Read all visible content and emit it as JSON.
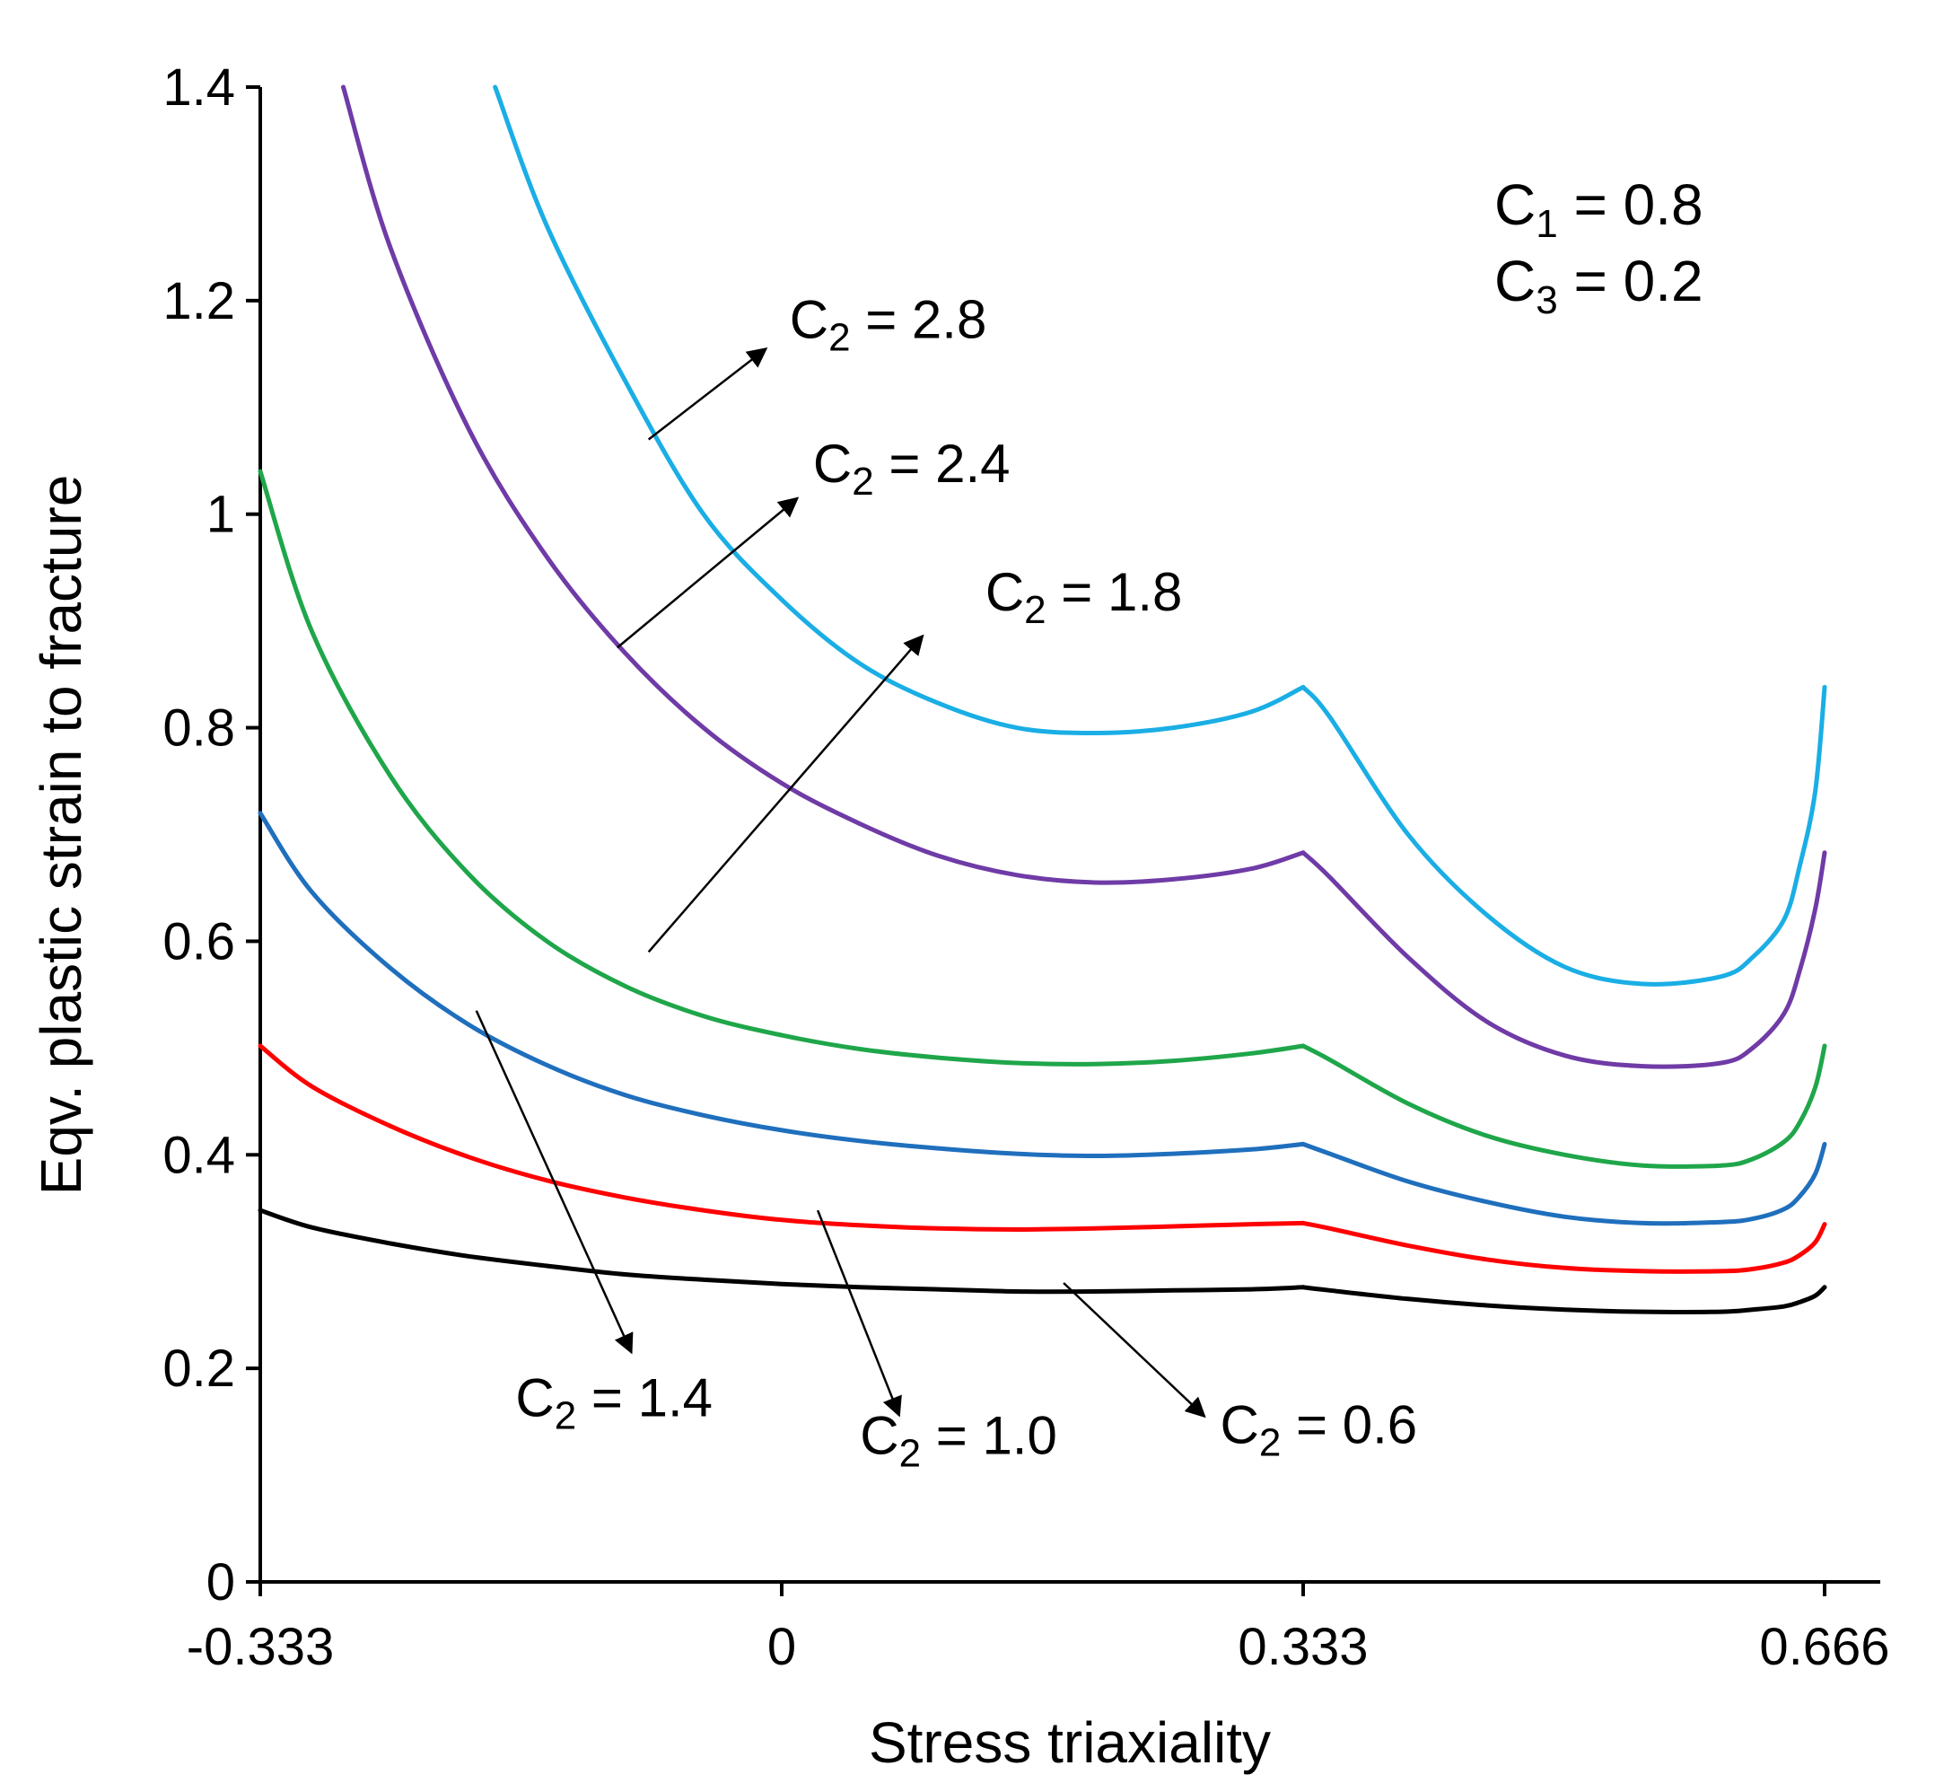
{
  "chart_data": {
    "type": "line",
    "title": "",
    "xlabel": "Stress triaxiality",
    "ylabel": "Eqv. plastic strain to fracture",
    "xlim": [
      -0.333,
      0.666
    ],
    "ylim": [
      0,
      1.4
    ],
    "grid": false,
    "x_ticks": [
      -0.333,
      0,
      0.333,
      0.666
    ],
    "x_tick_labels": [
      "-0.333",
      "0",
      "0.333",
      "0.666"
    ],
    "y_ticks": [
      0,
      0.2,
      0.4,
      0.6,
      0.8,
      1.0,
      1.2,
      1.4
    ],
    "y_tick_labels": [
      "0",
      "0.2",
      "0.4",
      "0.6",
      "0.8",
      "1",
      "1.2",
      "1.4"
    ],
    "parameters": [
      {
        "symbol": "C",
        "subscript": "1",
        "rest": " = 0.8"
      },
      {
        "symbol": "C",
        "subscript": "3",
        "rest": " = 0.2"
      }
    ],
    "x": [
      -0.333,
      -0.3,
      -0.25,
      -0.2,
      -0.15,
      -0.1,
      -0.05,
      0.0,
      0.05,
      0.1,
      0.15,
      0.2,
      0.25,
      0.3,
      0.333,
      0.35,
      0.4,
      0.45,
      0.5,
      0.55,
      0.6,
      0.62,
      0.64,
      0.65,
      0.66
    ],
    "series": [
      {
        "name": "C2 = 0.6",
        "label": {
          "symbol": "C",
          "subscript": "2",
          "rest": " = 0.6"
        },
        "color": "#000000",
        "label_anchor": [
          0.18,
          0.28
        ],
        "arrow_to": [
          0.27,
          0.155
        ],
        "text_at": [
          0.28,
          0.13
        ],
        "x": [
          -0.333,
          -0.3,
          -0.25,
          -0.2,
          -0.15,
          -0.1,
          -0.05,
          0.0,
          0.05,
          0.1,
          0.15,
          0.2,
          0.25,
          0.3,
          0.333,
          0.35,
          0.4,
          0.45,
          0.5,
          0.55,
          0.6,
          0.62,
          0.64,
          0.65,
          0.66,
          0.666
        ],
        "values": [
          0.348,
          0.332,
          0.317,
          0.305,
          0.296,
          0.288,
          0.283,
          0.279,
          0.276,
          0.274,
          0.272,
          0.272,
          0.273,
          0.274,
          0.276,
          0.273,
          0.265,
          0.259,
          0.255,
          0.253,
          0.253,
          0.255,
          0.258,
          0.262,
          0.268,
          0.276
        ]
      },
      {
        "name": "C2 = 1.0",
        "label": {
          "symbol": "C",
          "subscript": "2",
          "rest": " = 1.0"
        },
        "color": "#ff0000",
        "label_anchor": [
          0.023,
          0.348
        ],
        "arrow_to": [
          0.075,
          0.156
        ],
        "text_at": [
          0.05,
          0.12
        ],
        "x": [
          -0.333,
          -0.3,
          -0.25,
          -0.2,
          -0.15,
          -0.1,
          -0.05,
          0.0,
          0.05,
          0.1,
          0.15,
          0.2,
          0.25,
          0.3,
          0.333,
          0.35,
          0.4,
          0.45,
          0.5,
          0.55,
          0.6,
          0.62,
          0.64,
          0.65,
          0.66,
          0.666
        ],
        "values": [
          0.502,
          0.464,
          0.427,
          0.398,
          0.376,
          0.36,
          0.348,
          0.339,
          0.334,
          0.331,
          0.33,
          0.331,
          0.333,
          0.335,
          0.336,
          0.331,
          0.315,
          0.302,
          0.294,
          0.291,
          0.291,
          0.293,
          0.299,
          0.306,
          0.318,
          0.335
        ]
      },
      {
        "name": "C2 = 1.4",
        "label": {
          "symbol": "C",
          "subscript": "2",
          "rest": " = 1.4"
        },
        "color": "#1f6fbd",
        "label_anchor": [
          -0.195,
          0.535
        ],
        "arrow_to": [
          -0.096,
          0.215
        ],
        "text_at": [
          -0.17,
          0.155
        ],
        "x": [
          -0.333,
          -0.3,
          -0.25,
          -0.2,
          -0.15,
          -0.1,
          -0.05,
          0.0,
          0.05,
          0.1,
          0.15,
          0.2,
          0.25,
          0.3,
          0.333,
          0.35,
          0.4,
          0.45,
          0.5,
          0.55,
          0.6,
          0.62,
          0.64,
          0.65,
          0.66,
          0.666
        ],
        "values": [
          0.72,
          0.646,
          0.575,
          0.522,
          0.484,
          0.456,
          0.437,
          0.423,
          0.413,
          0.406,
          0.401,
          0.399,
          0.401,
          0.405,
          0.41,
          0.401,
          0.375,
          0.356,
          0.342,
          0.336,
          0.337,
          0.34,
          0.349,
          0.361,
          0.382,
          0.41
        ]
      },
      {
        "name": "C2 = 1.8",
        "label": {
          "symbol": "C",
          "subscript": "2",
          "rest": " = 1.8"
        },
        "color": "#1fa64a",
        "label_anchor": [
          -0.085,
          0.59
        ],
        "arrow_to": [
          0.09,
          0.886
        ],
        "text_at": [
          0.13,
          0.91
        ],
        "x": [
          -0.333,
          -0.3,
          -0.25,
          -0.2,
          -0.15,
          -0.1,
          -0.05,
          0.0,
          0.05,
          0.1,
          0.15,
          0.2,
          0.25,
          0.3,
          0.333,
          0.35,
          0.4,
          0.45,
          0.5,
          0.55,
          0.6,
          0.62,
          0.64,
          0.65,
          0.66,
          0.666
        ],
        "values": [
          1.04,
          0.89,
          0.755,
          0.663,
          0.6,
          0.558,
          0.53,
          0.512,
          0.499,
          0.491,
          0.486,
          0.485,
          0.488,
          0.495,
          0.502,
          0.489,
          0.448,
          0.418,
          0.4,
          0.39,
          0.39,
          0.396,
          0.412,
          0.43,
          0.463,
          0.502
        ]
      },
      {
        "name": "C2 = 2.4",
        "label": {
          "symbol": "C",
          "subscript": "2",
          "rest": " = 2.4"
        },
        "color": "#6f3ba6",
        "label_anchor": [
          -0.105,
          0.875
        ],
        "arrow_to": [
          0.01,
          1.015
        ],
        "text_at": [
          0.02,
          1.03
        ],
        "x": [
          -0.28,
          -0.25,
          -0.2,
          -0.15,
          -0.1,
          -0.05,
          0.0,
          0.05,
          0.1,
          0.15,
          0.2,
          0.25,
          0.3,
          0.333,
          0.35,
          0.4,
          0.45,
          0.5,
          0.55,
          0.6,
          0.62,
          0.64,
          0.65,
          0.66,
          0.666
        ],
        "values": [
          1.4,
          1.25,
          1.08,
          0.96,
          0.87,
          0.8,
          0.748,
          0.71,
          0.68,
          0.662,
          0.655,
          0.658,
          0.668,
          0.683,
          0.66,
          0.585,
          0.525,
          0.493,
          0.483,
          0.486,
          0.5,
          0.532,
          0.572,
          0.63,
          0.683
        ]
      },
      {
        "name": "C2 = 2.8",
        "label": {
          "symbol": "C",
          "subscript": "2",
          "rest": " = 2.8"
        },
        "color": "#1aaee5",
        "label_anchor": [
          -0.085,
          1.07
        ],
        "arrow_to": [
          -0.01,
          1.155
        ],
        "text_at": [
          0.005,
          1.165
        ],
        "x": [
          -0.183,
          -0.15,
          -0.1,
          -0.05,
          0.0,
          0.05,
          0.1,
          0.15,
          0.2,
          0.25,
          0.3,
          0.333,
          0.35,
          0.4,
          0.45,
          0.5,
          0.55,
          0.6,
          0.62,
          0.64,
          0.65,
          0.66,
          0.666
        ],
        "values": [
          1.4,
          1.27,
          1.125,
          1.0,
          0.92,
          0.86,
          0.823,
          0.8,
          0.795,
          0.8,
          0.815,
          0.838,
          0.81,
          0.7,
          0.625,
          0.576,
          0.56,
          0.567,
          0.585,
          0.62,
          0.67,
          0.74,
          0.838
        ]
      }
    ]
  }
}
